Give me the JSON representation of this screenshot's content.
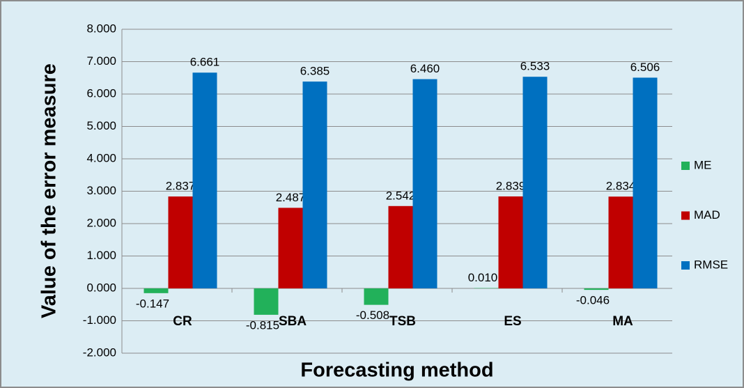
{
  "chart_data": {
    "type": "bar",
    "xlabel": "Forecasting method",
    "ylabel": "Value of the error measure",
    "categories": [
      "CR",
      "SBA",
      "TSB",
      "ES",
      "MA"
    ],
    "series": [
      {
        "name": "ME",
        "color": "#22b15a",
        "values": [
          -0.147,
          -0.815,
          -0.508,
          0.01,
          -0.046
        ],
        "value_labels": [
          "-0.147",
          "-0.815",
          "-0.508",
          "0.010",
          "-0.046"
        ]
      },
      {
        "name": "MAD",
        "color": "#c00000",
        "values": [
          2.837,
          2.487,
          2.542,
          2.839,
          2.834
        ],
        "value_labels": [
          "2.837",
          "2.487",
          "2.542",
          "2.839",
          "2.834"
        ]
      },
      {
        "name": "RMSE",
        "color": "#0070c0",
        "values": [
          6.661,
          6.385,
          6.46,
          6.533,
          6.506
        ],
        "value_labels": [
          "6.661",
          "6.385",
          "6.460",
          "6.533",
          "6.506"
        ]
      }
    ],
    "ylim": [
      -2,
      8
    ],
    "yticks": [
      {
        "value": -2,
        "label": "-2.000"
      },
      {
        "value": -1,
        "label": "-1.000"
      },
      {
        "value": 0,
        "label": "0.000"
      },
      {
        "value": 1,
        "label": "1.000"
      },
      {
        "value": 2,
        "label": "2.000"
      },
      {
        "value": 3,
        "label": "3.000"
      },
      {
        "value": 4,
        "label": "4.000"
      },
      {
        "value": 5,
        "label": "5.000"
      },
      {
        "value": 6,
        "label": "6.000"
      },
      {
        "value": 7,
        "label": "7.000"
      },
      {
        "value": 8,
        "label": "8.000"
      }
    ],
    "grid": true,
    "legend": "right"
  }
}
